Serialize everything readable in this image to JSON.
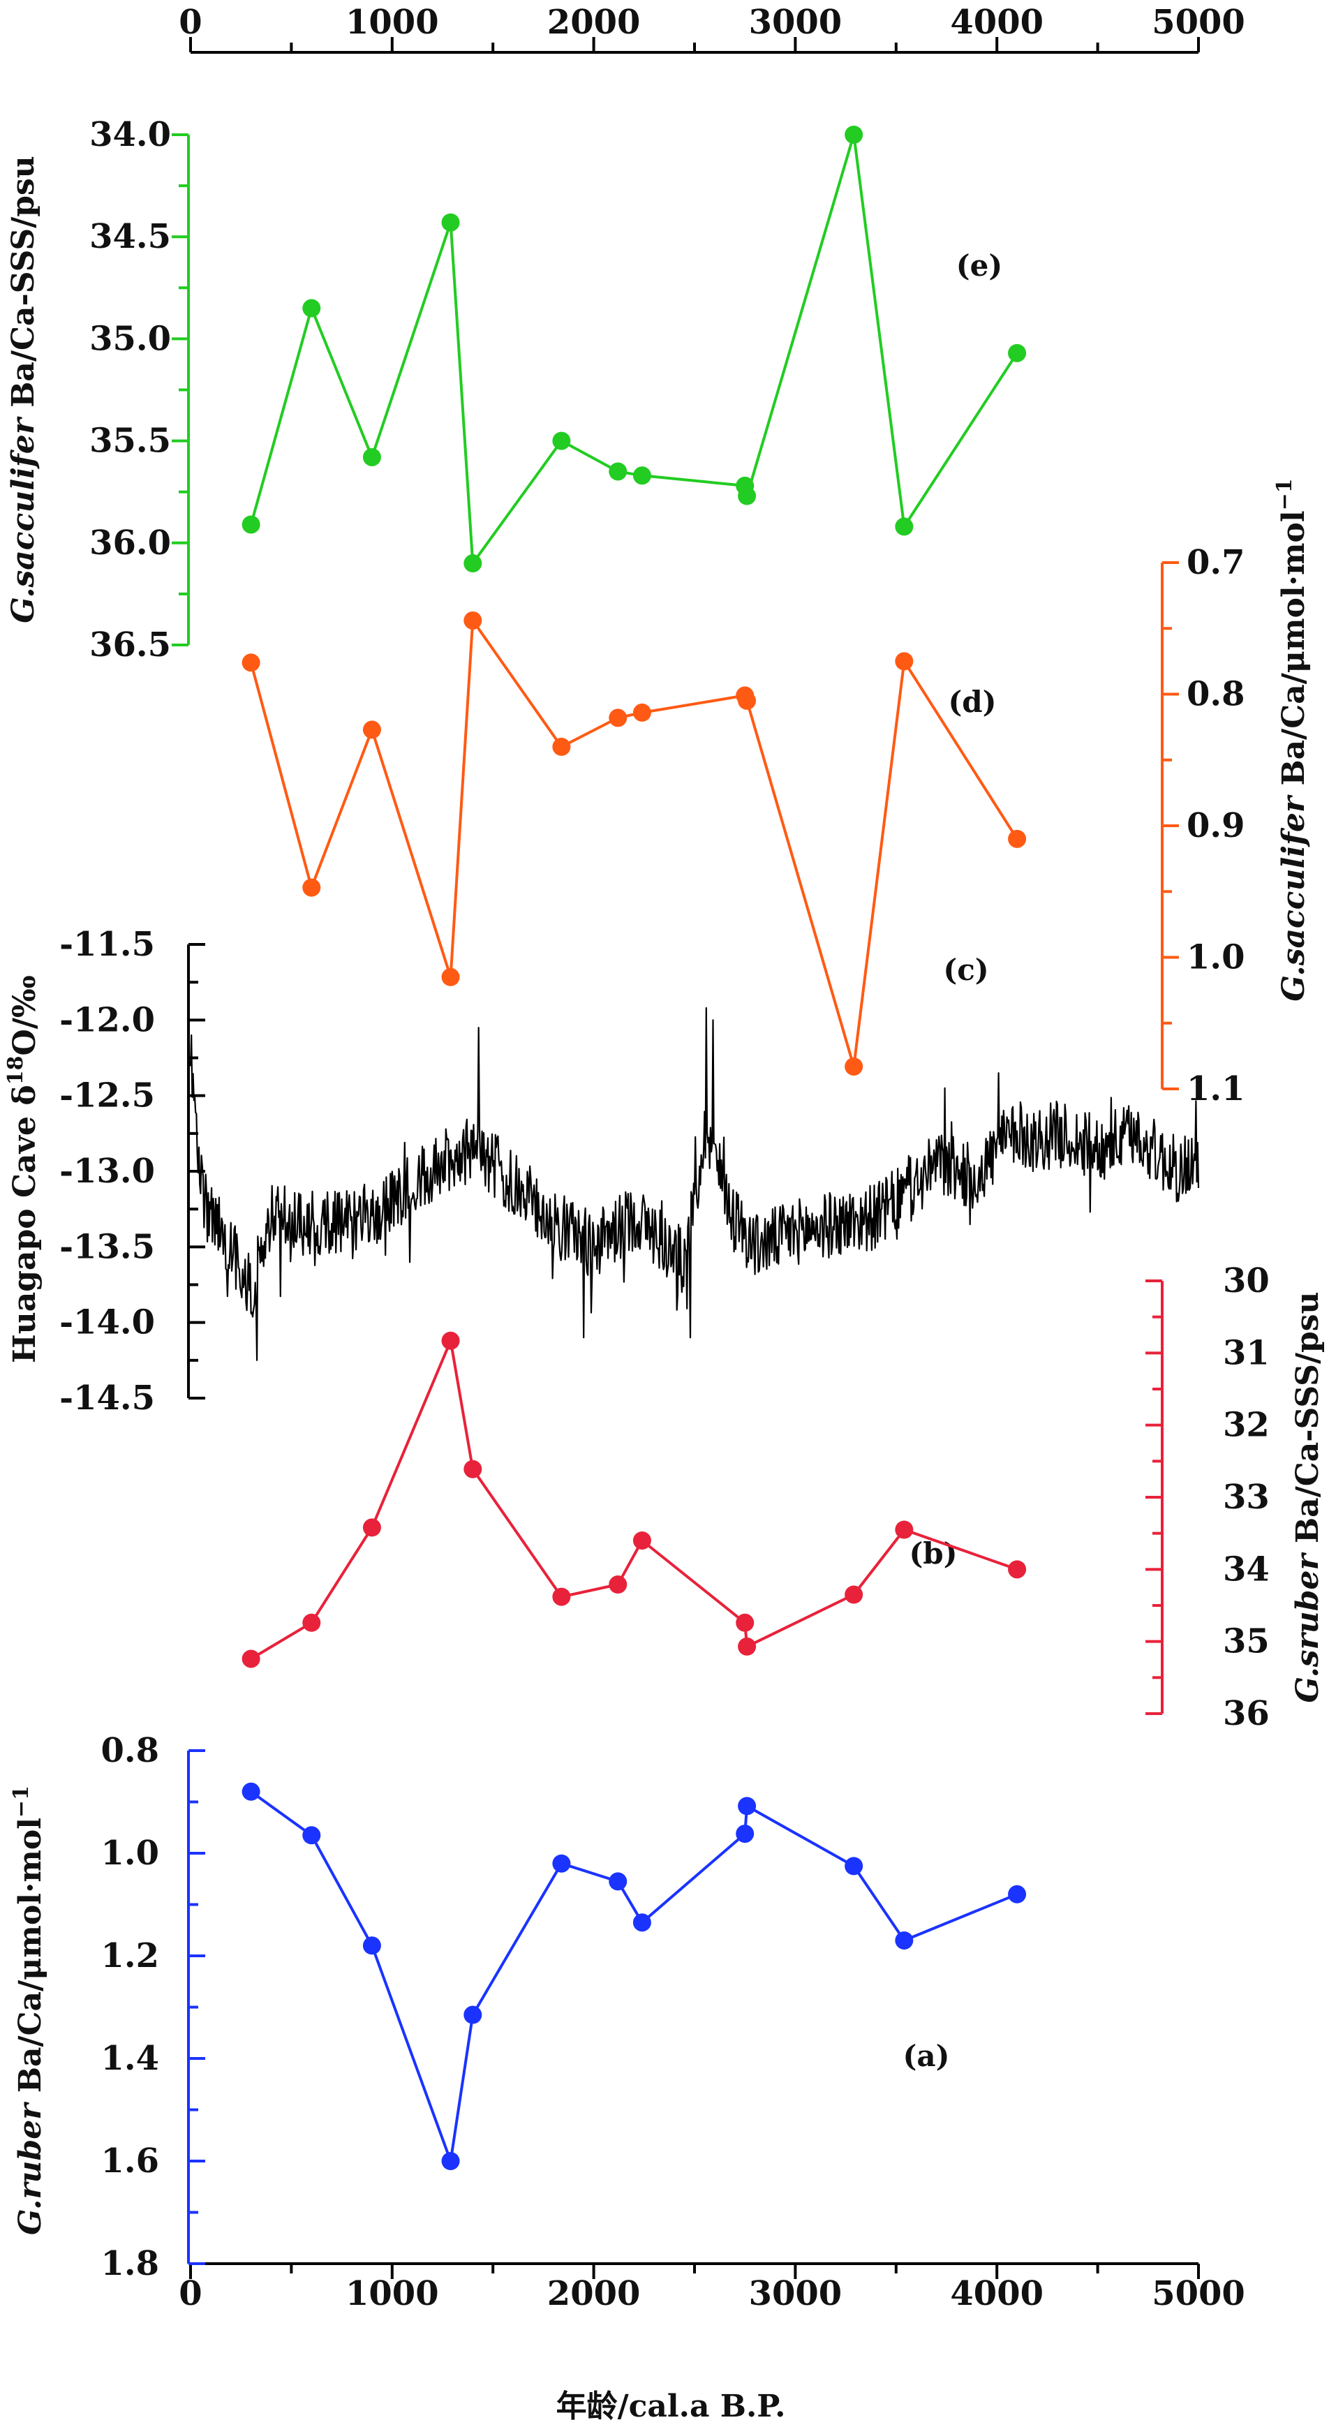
{
  "chart_data": {
    "type": "line",
    "x": {
      "label_cn": "年龄",
      "label_rest": "/cal.a B.P.",
      "range": [
        0,
        5000
      ],
      "major_ticks": [
        0,
        1000,
        2000,
        3000,
        4000,
        5000
      ],
      "tick_labels": [
        "0",
        "1000",
        "2000",
        "3000",
        "4000",
        "5000"
      ],
      "minor_step": 500
    },
    "panels": [
      {
        "id": "e",
        "panel_label": "(e)",
        "name": "G.sacculifer Ba/Ca-SSS",
        "color": "#22cc22",
        "axis_side": "left",
        "inverted": true,
        "range": [
          34.0,
          36.5
        ],
        "major_ticks": [
          34.0,
          34.5,
          35.0,
          35.5,
          36.0,
          36.5
        ],
        "tick_labels": [
          "34.0",
          "34.5",
          "35.0",
          "35.5",
          "36.0",
          "36.5"
        ],
        "minor_step": 0.25,
        "axis_label_italic": "G.sacculifer",
        "axis_label_rest": " Ba/Ca-SSS/psu",
        "points": [
          [
            300,
            35.91
          ],
          [
            600,
            34.85
          ],
          [
            900,
            35.58
          ],
          [
            1290,
            34.43
          ],
          [
            1400,
            36.1
          ],
          [
            1840,
            35.5
          ],
          [
            2120,
            35.65
          ],
          [
            2240,
            35.67
          ],
          [
            2750,
            35.72
          ],
          [
            2760,
            35.77
          ],
          [
            3290,
            34.0
          ],
          [
            3540,
            35.92
          ],
          [
            4100,
            35.07
          ]
        ]
      },
      {
        "id": "d",
        "panel_label": "(d)",
        "name": "G.sacculifer Ba/Ca",
        "color": "#ff5a14",
        "axis_side": "right",
        "inverted": false,
        "range": [
          0.7,
          1.1
        ],
        "major_ticks": [
          0.7,
          0.8,
          0.9,
          1.0,
          1.1
        ],
        "tick_labels": [
          "0.7",
          "0.8",
          "0.9",
          "1.0",
          "1.1"
        ],
        "minor_step": 0.05,
        "axis_label_italic": "G.sacculifer",
        "axis_label_rest": " Ba/Ca/μmol·mol",
        "axis_label_sup": "−1",
        "points": [
          [
            300,
            0.776
          ],
          [
            600,
            0.947
          ],
          [
            900,
            0.827
          ],
          [
            1290,
            1.015
          ],
          [
            1400,
            0.744
          ],
          [
            1840,
            0.84
          ],
          [
            2120,
            0.818
          ],
          [
            2240,
            0.814
          ],
          [
            2750,
            0.801
          ],
          [
            2760,
            0.805
          ],
          [
            3290,
            1.083
          ],
          [
            3540,
            0.775
          ],
          [
            4100,
            0.91
          ]
        ]
      },
      {
        "id": "c",
        "panel_label": "(c)",
        "name": "Huagapo Cave δ18O",
        "color": "#000000",
        "axis_side": "left",
        "inverted": true,
        "range": [
          -11.5,
          -14.5
        ],
        "major_ticks": [
          -11.5,
          -12.0,
          -12.5,
          -13.0,
          -13.5,
          -14.0,
          -14.5
        ],
        "tick_labels": [
          "-11.5",
          "-12.0",
          "-12.5",
          "-13.0",
          "-13.5",
          "-14.0",
          "-14.5"
        ],
        "minor_step": 0.25,
        "axis_label_rest": "Huagapo Cave δ",
        "axis_label_sup": "18",
        "axis_label_tail": "O/‰",
        "trend": [
          [
            0,
            -12.3
          ],
          [
            60,
            -13.2
          ],
          [
            200,
            -13.5
          ],
          [
            300,
            -13.8
          ],
          [
            400,
            -13.3
          ],
          [
            600,
            -13.35
          ],
          [
            900,
            -13.3
          ],
          [
            1000,
            -13.2
          ],
          [
            1200,
            -13.0
          ],
          [
            1300,
            -12.9
          ],
          [
            1400,
            -12.85
          ],
          [
            1500,
            -12.95
          ],
          [
            1600,
            -13.1
          ],
          [
            1700,
            -13.2
          ],
          [
            1800,
            -13.35
          ],
          [
            1900,
            -13.4
          ],
          [
            2000,
            -13.5
          ],
          [
            2100,
            -13.4
          ],
          [
            2200,
            -13.3
          ],
          [
            2300,
            -13.4
          ],
          [
            2400,
            -13.55
          ],
          [
            2450,
            -13.6
          ],
          [
            2500,
            -13.2
          ],
          [
            2560,
            -12.7
          ],
          [
            2620,
            -13.0
          ],
          [
            2700,
            -13.3
          ],
          [
            2800,
            -13.5
          ],
          [
            3000,
            -13.4
          ],
          [
            3200,
            -13.35
          ],
          [
            3400,
            -13.3
          ],
          [
            3600,
            -13.1
          ],
          [
            3700,
            -12.95
          ],
          [
            3800,
            -13.0
          ],
          [
            3900,
            -13.05
          ],
          [
            4000,
            -12.85
          ],
          [
            4100,
            -12.75
          ],
          [
            4200,
            -12.8
          ],
          [
            4300,
            -12.75
          ],
          [
            4400,
            -12.8
          ],
          [
            4500,
            -12.85
          ],
          [
            4600,
            -12.8
          ],
          [
            4700,
            -12.75
          ],
          [
            4800,
            -12.9
          ],
          [
            4900,
            -13.0
          ],
          [
            5000,
            -12.9
          ]
        ],
        "n_samples": 1200,
        "noise_amplitude": 0.22,
        "spikes": [
          [
            3,
            -12.1
          ],
          [
            330,
            -14.25
          ],
          [
            1430,
            -12.05
          ],
          [
            2560,
            -11.92
          ],
          [
            2590,
            -12.0
          ],
          [
            1950,
            -14.1
          ],
          [
            2480,
            -14.1
          ],
          [
            3740,
            -12.45
          ],
          [
            4010,
            -12.35
          ]
        ]
      },
      {
        "id": "b",
        "panel_label": "(b)",
        "name": "G.sruber Ba/Ca-SSS",
        "color": "#e8223a",
        "axis_side": "right",
        "inverted": true,
        "range": [
          30,
          36
        ],
        "major_ticks": [
          30,
          31,
          32,
          33,
          34,
          35,
          36
        ],
        "tick_labels": [
          "30",
          "31",
          "32",
          "33",
          "34",
          "35",
          "36"
        ],
        "minor_step": 0.5,
        "axis_label_italic": "G.sruber",
        "axis_label_rest": " Ba/Ca-SSS/psu",
        "points": [
          [
            300,
            35.24
          ],
          [
            600,
            34.74
          ],
          [
            900,
            33.42
          ],
          [
            1290,
            30.83
          ],
          [
            1400,
            32.61
          ],
          [
            1840,
            34.38
          ],
          [
            2120,
            34.21
          ],
          [
            2240,
            33.6
          ],
          [
            2750,
            34.74
          ],
          [
            2760,
            35.07
          ],
          [
            3290,
            34.35
          ],
          [
            3540,
            33.45
          ],
          [
            4100,
            34.0
          ]
        ]
      },
      {
        "id": "a",
        "panel_label": "(a)",
        "name": "G.ruber Ba/Ca",
        "color": "#1a33ff",
        "axis_side": "left",
        "inverted": false,
        "range": [
          0.8,
          1.8
        ],
        "major_ticks": [
          0.8,
          1.0,
          1.2,
          1.4,
          1.6,
          1.8
        ],
        "tick_labels": [
          "0.8",
          "1.0",
          "1.2",
          "1.4",
          "1.6",
          "1.8"
        ],
        "minor_step": 0.1,
        "axis_label_italic": "G.ruber",
        "axis_label_rest": " Ba/Ca/μmol·mol",
        "axis_label_sup": "−1",
        "points": [
          [
            300,
            0.88
          ],
          [
            600,
            0.965
          ],
          [
            900,
            1.18
          ],
          [
            1290,
            1.6
          ],
          [
            1400,
            1.315
          ],
          [
            1840,
            1.02
          ],
          [
            2120,
            1.055
          ],
          [
            2240,
            1.135
          ],
          [
            2750,
            0.962
          ],
          [
            2760,
            0.908
          ],
          [
            3290,
            1.025
          ],
          [
            3540,
            1.17
          ],
          [
            4100,
            1.08
          ]
        ]
      }
    ]
  }
}
